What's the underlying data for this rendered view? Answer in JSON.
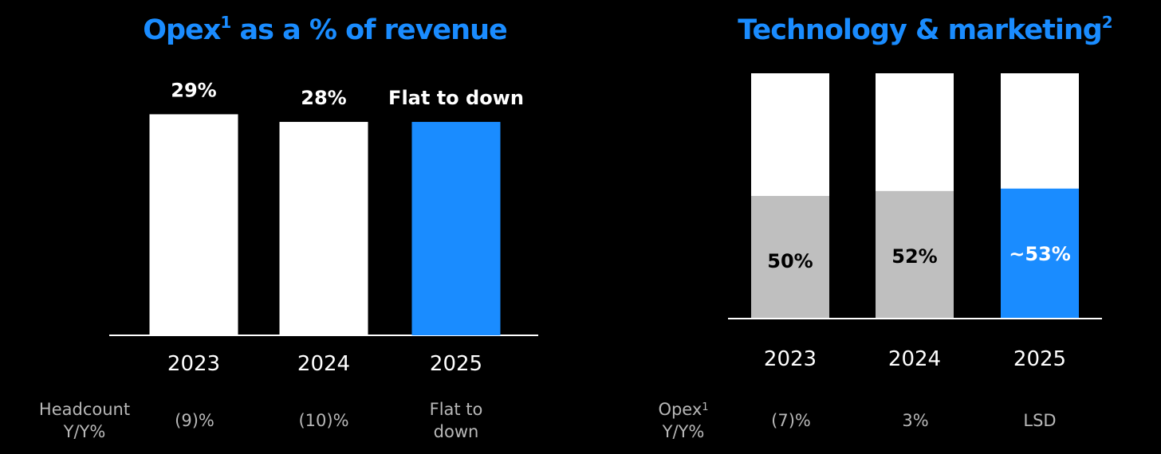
{
  "colors": {
    "background": "#000000",
    "accent": "#1a8cff",
    "white_bar": "#ffffff",
    "gray_bar": "#bfbfbf",
    "footer_text": "#b8b8b8"
  },
  "left_chart": {
    "title_main": "Opex",
    "title_sup": "1",
    "title_rest": " as a % of revenue",
    "footer_label_line1": "Headcount",
    "footer_label_line2": "Y/Y%",
    "footer_values": [
      "(9)%",
      "(10)%",
      "Flat to down"
    ]
  },
  "right_chart": {
    "title_main": "Technology & marketing",
    "title_sup": "2",
    "footer_label_main": "Opex",
    "footer_label_sup": "1",
    "footer_label_line2": "Y/Y%",
    "footer_values": [
      "(7)%",
      "3%",
      "LSD"
    ]
  },
  "chart_data": [
    {
      "type": "bar",
      "categories": [
        "2023",
        "2024",
        "2025"
      ],
      "values": [
        29,
        28,
        28
      ],
      "data_labels": [
        "29%",
        "28%",
        "Flat to down"
      ],
      "highlight_index": 2,
      "title": "Opex1 as a % of revenue",
      "xlabel": "",
      "ylabel": "",
      "ylim": [
        0,
        35
      ],
      "grid": false
    },
    {
      "type": "bar",
      "stacked": true,
      "categories": [
        "2023",
        "2024",
        "2025"
      ],
      "values": [
        50,
        52,
        53
      ],
      "data_labels": [
        "50%",
        "52%",
        "~53%"
      ],
      "highlight_index": 2,
      "title": "Technology & marketing2",
      "xlabel": "",
      "ylabel": "",
      "ylim": [
        0,
        100
      ],
      "grid": false
    }
  ]
}
